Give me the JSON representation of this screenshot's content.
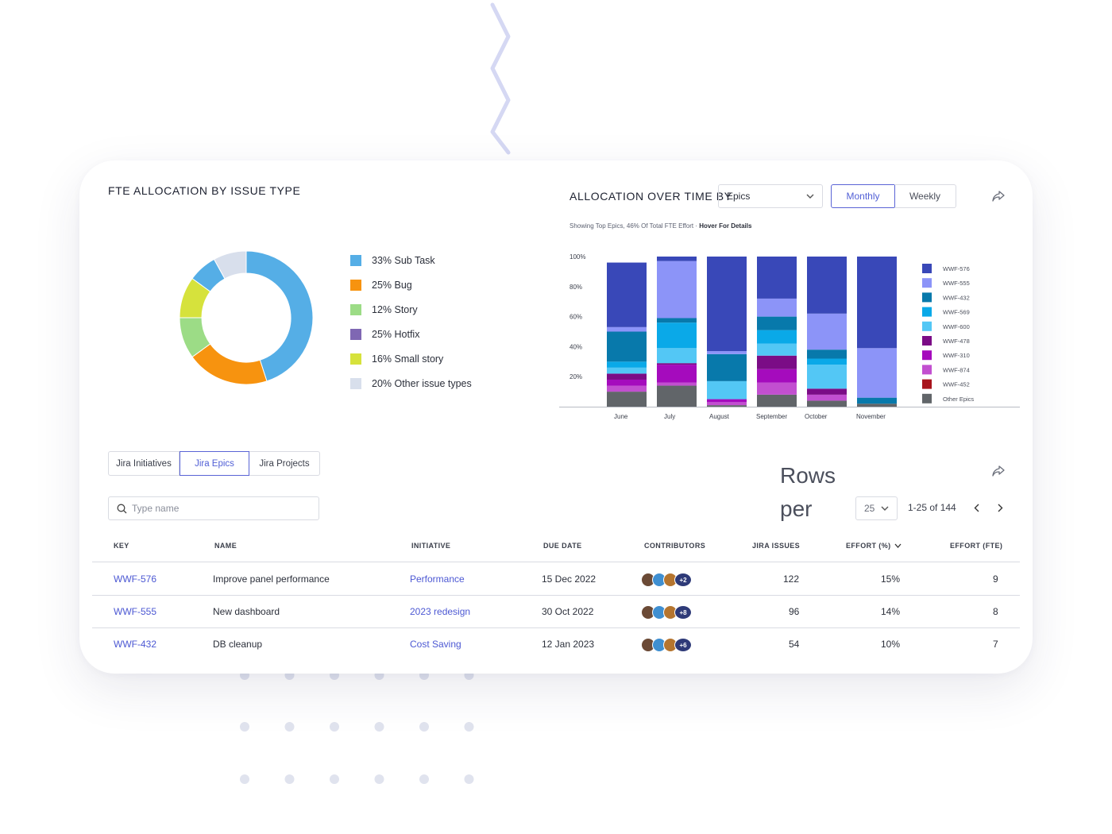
{
  "donut_panel": {
    "title": "FTE ALLOCATION BY ISSUE TYPE",
    "legend": [
      {
        "label": "33% Sub Task",
        "color": "#55aee6"
      },
      {
        "label": "25% Bug",
        "color": "#f7930f"
      },
      {
        "label": "12% Story",
        "color": "#9cdc86"
      },
      {
        "label": "25% Hotfix",
        "color": "#7f67b3"
      },
      {
        "label": "16% Small story",
        "color": "#d6e23c"
      },
      {
        "label": "20% Other issue types",
        "color": "#d8dfec"
      }
    ]
  },
  "allocation_panel": {
    "title": "ALLOCATION OVER TIME BY",
    "group_by": "Epics",
    "toggle": {
      "monthly": "Monthly",
      "weekly": "Weekly",
      "selected": "Monthly"
    },
    "caption_prefix": "Showing Top Epics, 46% Of Total FTE Effort · ",
    "caption_hint": "Hover For Details"
  },
  "chart_data": {
    "type": "bar",
    "stacked": true,
    "categories": [
      "June",
      "July",
      "August",
      "September",
      "October",
      "November"
    ],
    "y_ticks": [
      "100%",
      "80%",
      "60%",
      "40%",
      "20%"
    ],
    "ylim": [
      0,
      100
    ],
    "legend_position": "right",
    "series": [
      {
        "name": "Other Epics",
        "color": "#616569",
        "values": [
          10,
          14,
          1,
          8,
          4,
          2
        ]
      },
      {
        "name": "WWF-452",
        "color": "#a8141c",
        "values": [
          0,
          0,
          0,
          0,
          0,
          0
        ]
      },
      {
        "name": "WWF-874",
        "color": "#c24fd0",
        "values": [
          4,
          2,
          2,
          8,
          4,
          0
        ]
      },
      {
        "name": "WWF-310",
        "color": "#a50bbd",
        "values": [
          4,
          12,
          2,
          9,
          0,
          0
        ]
      },
      {
        "name": "WWF-478",
        "color": "#7b0c86",
        "values": [
          4,
          1,
          0,
          9,
          4,
          0
        ]
      },
      {
        "name": "WWF-600",
        "color": "#53c7f5",
        "values": [
          4,
          10,
          12,
          8,
          16,
          0
        ]
      },
      {
        "name": "WWF-569",
        "color": "#0aa9e8",
        "values": [
          4,
          17,
          0,
          9,
          4,
          0
        ]
      },
      {
        "name": "WWF-432",
        "color": "#0879ab",
        "values": [
          20,
          3,
          18,
          9,
          6,
          4
        ]
      },
      {
        "name": "WWF-555",
        "color": "#8c94f8",
        "values": [
          3,
          38,
          2,
          12,
          24,
          33
        ]
      },
      {
        "name": "WWF-576",
        "color": "#3948b8",
        "values": [
          43,
          3,
          63,
          28,
          38,
          61
        ]
      }
    ]
  },
  "tabs": [
    "Jira Initiatives",
    "Jira Epics",
    "Jira Projects"
  ],
  "active_tab": "Jira Epics",
  "search": {
    "placeholder": "Type name"
  },
  "pagination": {
    "rows_label": "Rows per",
    "rows_value": "25",
    "range": "1-25 of 144"
  },
  "table": {
    "columns": [
      "KEY",
      "NAME",
      "INITIATIVE",
      "DUE DATE",
      "CONTRIBUTORS",
      "JIRA ISSUES",
      "EFFORT (%)",
      "EFFORT (FTE)"
    ],
    "rows": [
      {
        "key": "WWF-576",
        "name": "Improve panel performance",
        "initiative": "Performance",
        "due": "15 Dec 2022",
        "more": "+2",
        "issues": "122",
        "effort_pct": "15%",
        "effort_fte": "9"
      },
      {
        "key": "WWF-555",
        "name": "New dashboard",
        "initiative": "2023 redesign",
        "due": "30 Oct 2022",
        "more": "+8",
        "issues": "96",
        "effort_pct": "14%",
        "effort_fte": "8"
      },
      {
        "key": "WWF-432",
        "name": "DB cleanup",
        "initiative": "Cost Saving",
        "due": "12 Jan 2023",
        "more": "+6",
        "issues": "54",
        "effort_pct": "10%",
        "effort_fte": "7"
      }
    ]
  }
}
